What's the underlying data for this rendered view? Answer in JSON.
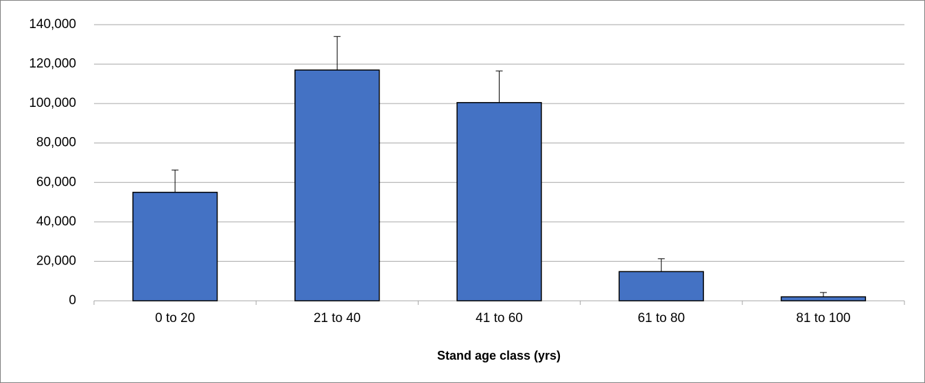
{
  "chart_data": {
    "type": "bar",
    "x_label": "Stand age class (yrs)",
    "categories": [
      "0 to 20",
      "21 to 40",
      "41 to 60",
      "61 to 80",
      "81 to 100"
    ],
    "values": [
      55000,
      117000,
      100500,
      14800,
      2000
    ],
    "errors": [
      11300,
      17000,
      16000,
      6500,
      2200
    ],
    "color": "#4472c4",
    "ylim": [
      0,
      140000
    ],
    "yticks": [
      0,
      {
        "value": 20000,
        "label": "20,000"
      },
      {
        "value": 40000,
        "label": "40,000"
      },
      {
        "value": 60000,
        "label": "60,000"
      },
      {
        "value": 80000,
        "label": "80,000"
      },
      {
        "value": 100000,
        "label": "100,000"
      },
      {
        "value": 120000,
        "label": "120,000"
      },
      {
        "value": 140000,
        "label": "140,000"
      }
    ],
    "grid": true
  }
}
